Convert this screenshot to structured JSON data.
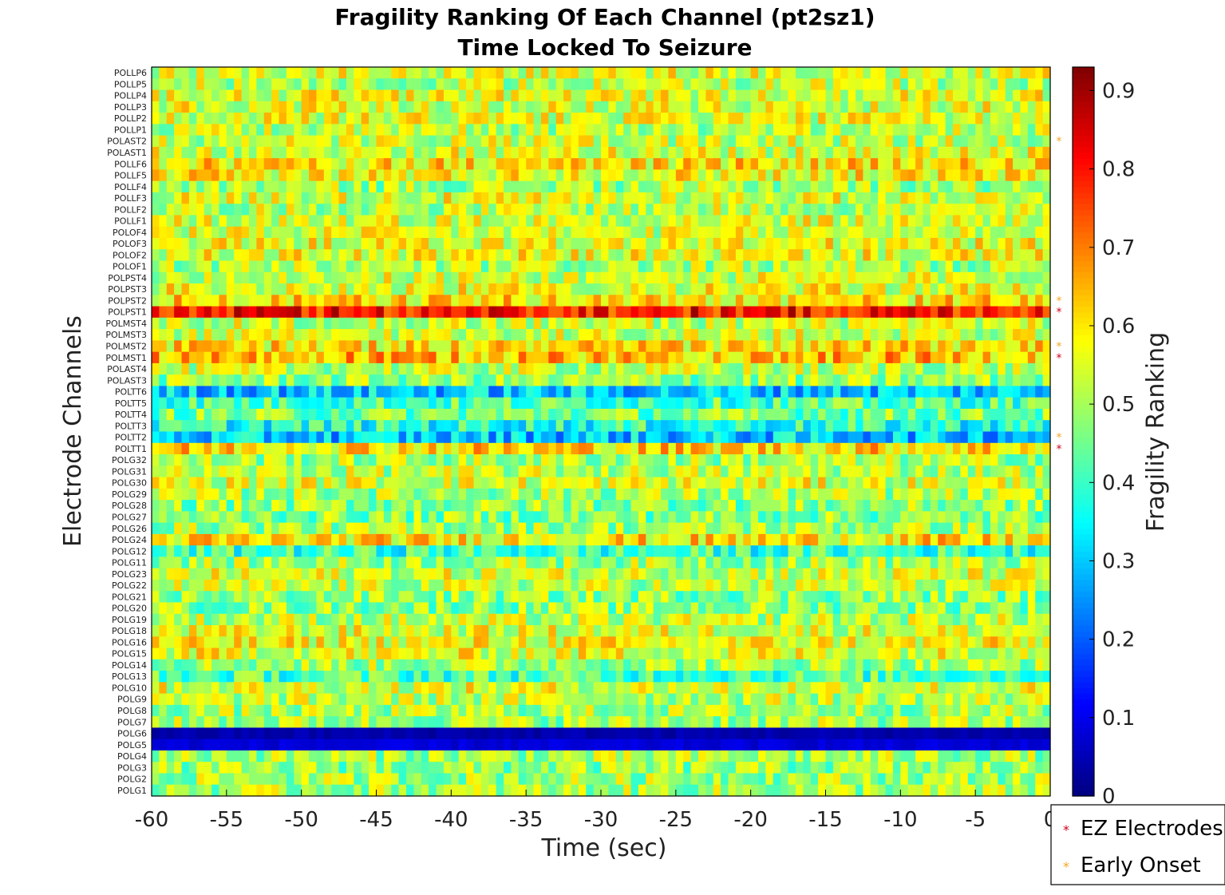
{
  "chart_data": {
    "type": "heatmap",
    "title": "Fragility Ranking Of Each Channel (pt2sz1)",
    "subtitle": "Time Locked To Seizure",
    "xlabel": "Time (sec)",
    "ylabel": "Electrode Channels",
    "colorbar_label": "Fragility Ranking",
    "colormap": "jet",
    "xlim": [
      -60,
      0
    ],
    "xticks": [
      -60,
      -55,
      -50,
      -45,
      -40,
      -35,
      -30,
      -25,
      -20,
      -15,
      -10,
      -5,
      0
    ],
    "xtick_labels": [
      "-60",
      "-55",
      "-50",
      "-45",
      "-40",
      "-35",
      "-30",
      "-25",
      "-20",
      "-15",
      "-10",
      "-5",
      "0"
    ],
    "clim": [
      0,
      0.93
    ],
    "cticks": [
      0,
      0.1,
      0.2,
      0.3,
      0.4,
      0.5,
      0.6,
      0.7,
      0.8,
      0.9
    ],
    "ctick_labels": [
      "0",
      "0.1",
      "0.2",
      "0.3",
      "0.4",
      "0.5",
      "0.6",
      "0.7",
      "0.8",
      "0.9"
    ],
    "n_time_windows": 120,
    "channels": [
      "POLLP6",
      "POLLP5",
      "POLLP4",
      "POLLP3",
      "POLLP2",
      "POLLP1",
      "POLAST2",
      "POLAST1",
      "POLLF6",
      "POLLF5",
      "POLLF4",
      "POLLF3",
      "POLLF2",
      "POLLF1",
      "POLOF4",
      "POLOF3",
      "POLOF2",
      "POLOF1",
      "POLPST4",
      "POLPST3",
      "POLPST2",
      "POLPST1",
      "POLMST4",
      "POLMST3",
      "POLMST2",
      "POLMST1",
      "POLAST4",
      "POLAST3",
      "POLTT6",
      "POLTT5",
      "POLTT4",
      "POLTT3",
      "POLTT2",
      "POLTT1",
      "POLG32",
      "POLG31",
      "POLG30",
      "POLG29",
      "POLG28",
      "POLG27",
      "POLG26",
      "POLG24",
      "POLG12",
      "POLG11",
      "POLG23",
      "POLG22",
      "POLG21",
      "POLG20",
      "POLG19",
      "POLG18",
      "POLG16",
      "POLG15",
      "POLG14",
      "POLG13",
      "POLG10",
      "POLG9",
      "POLG8",
      "POLG7",
      "POLG6",
      "POLG5",
      "POLG4",
      "POLG3",
      "POLG2",
      "POLG1"
    ],
    "ez_electrodes": [
      "POLPST1",
      "POLMST1",
      "POLTT1"
    ],
    "early_onset": [
      "POLAST2",
      "POLPST2",
      "POLMST2",
      "POLTT2"
    ],
    "row_mean_fragility": {
      "POLLP6": 0.55,
      "POLLP5": 0.52,
      "POLLP4": 0.56,
      "POLLP3": 0.55,
      "POLLP2": 0.55,
      "POLLP1": 0.52,
      "POLAST2": 0.53,
      "POLAST1": 0.55,
      "POLLF6": 0.6,
      "POLLF5": 0.58,
      "POLLF4": 0.5,
      "POLLF3": 0.55,
      "POLLF2": 0.52,
      "POLLF1": 0.55,
      "POLOF4": 0.54,
      "POLOF3": 0.56,
      "POLOF2": 0.56,
      "POLOF1": 0.5,
      "POLPST4": 0.54,
      "POLPST3": 0.56,
      "POLPST2": 0.6,
      "POLPST1": 0.8,
      "POLMST4": 0.53,
      "POLMST3": 0.54,
      "POLMST2": 0.6,
      "POLMST1": 0.64,
      "POLAST4": 0.52,
      "POLAST3": 0.48,
      "POLTT6": 0.3,
      "POLTT5": 0.42,
      "POLTT4": 0.46,
      "POLTT3": 0.38,
      "POLTT2": 0.3,
      "POLTT1": 0.62,
      "POLG32": 0.5,
      "POLG31": 0.52,
      "POLG30": 0.55,
      "POLG29": 0.5,
      "POLG28": 0.48,
      "POLG27": 0.47,
      "POLG26": 0.5,
      "POLG24": 0.6,
      "POLG12": 0.4,
      "POLG11": 0.5,
      "POLG23": 0.54,
      "POLG22": 0.52,
      "POLG21": 0.48,
      "POLG20": 0.48,
      "POLG19": 0.52,
      "POLG18": 0.55,
      "POLG16": 0.57,
      "POLG15": 0.56,
      "POLG14": 0.5,
      "POLG13": 0.42,
      "POLG10": 0.55,
      "POLG9": 0.52,
      "POLG8": 0.5,
      "POLG7": 0.5,
      "POLG6": 0.04,
      "POLG5": 0.08,
      "POLG4": 0.5,
      "POLG3": 0.48,
      "POLG2": 0.5,
      "POLG1": 0.5
    },
    "grid": false
  },
  "legend": {
    "placement": "bottom-right",
    "items": [
      {
        "label": "EZ Electrodes",
        "color": "#d0021b",
        "marker": "*"
      },
      {
        "label": "Early Onset",
        "color": "#f5a623",
        "marker": "*"
      }
    ]
  },
  "colors": {
    "ez": "#e8001c",
    "early": "#f07f00",
    "text": "#222222"
  }
}
